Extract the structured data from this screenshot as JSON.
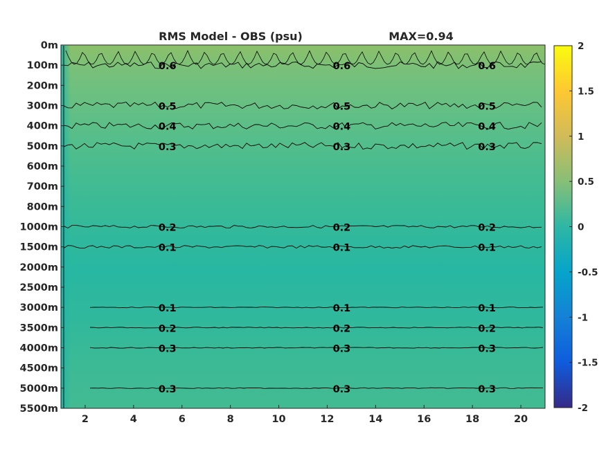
{
  "chart_data": {
    "type": "heatmap",
    "title": "RMS Model - OBS (psu)",
    "max_label": "MAX=0.94",
    "xlabel": "",
    "ylabel": "",
    "x_ticks": [
      "2",
      "4",
      "6",
      "8",
      "10",
      "12",
      "14",
      "16",
      "18",
      "20"
    ],
    "xlim": [
      1,
      21
    ],
    "y_ticks": [
      "0m",
      "100m",
      "200m",
      "300m",
      "400m",
      "500m",
      "600m",
      "700m",
      "800m",
      "1000m",
      "1500m",
      "2000m",
      "2500m",
      "3000m",
      "3500m",
      "4000m",
      "4500m",
      "5000m",
      "5500m"
    ],
    "colorbar": {
      "ticks": [
        "2",
        "1.5",
        "1",
        "0.5",
        "0",
        "-0.5",
        "-1",
        "-1.5",
        "-2"
      ],
      "range": [
        -2,
        2
      ],
      "colormap": "parula",
      "colors": [
        "#352a87",
        "#0f5cdd",
        "#1481d6",
        "#06a4ca",
        "#2eb7a4",
        "#87bf77",
        "#d1bb59",
        "#fec832",
        "#f9fb0e"
      ]
    },
    "contours": [
      {
        "level": 0.6,
        "label": "0.6",
        "depth_index": 1
      },
      {
        "level": 0.5,
        "label": "0.5",
        "depth_index": 3
      },
      {
        "level": 0.4,
        "label": "0.4",
        "depth_index": 4
      },
      {
        "level": 0.3,
        "label": "0.3",
        "depth_index": 5
      },
      {
        "level": 0.2,
        "label": "0.2",
        "depth_index": 9
      },
      {
        "level": 0.1,
        "label": "0.1",
        "depth_index": 10
      },
      {
        "level": 0.1,
        "label": "0.1",
        "depth_index": 13
      },
      {
        "level": 0.2,
        "label": "0.2",
        "depth_index": 14
      },
      {
        "level": 0.3,
        "label": "0.3",
        "depth_index": 15
      },
      {
        "level": 0.3,
        "label": "0.3",
        "depth_index": 17
      }
    ],
    "extra_labels": [
      "0.5",
      "0.0",
      "0.1",
      "0.2",
      "0.3"
    ]
  }
}
